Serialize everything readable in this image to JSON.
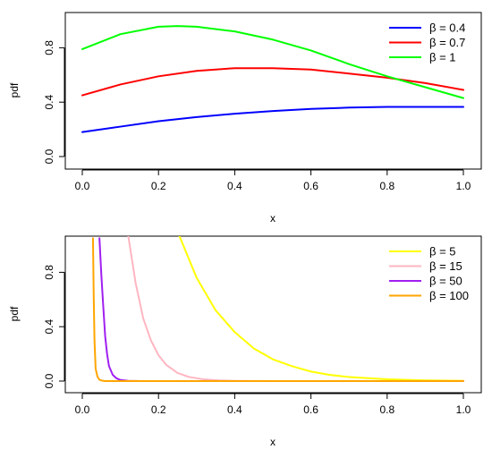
{
  "chart_data": [
    {
      "type": "line",
      "xlabel": "x",
      "ylabel": "pdf",
      "xlim": [
        0,
        1
      ],
      "ylim": [
        0,
        1
      ],
      "xticks": [
        "0.0",
        "0.2",
        "0.4",
        "0.6",
        "0.8",
        "1.0"
      ],
      "yticks": [
        "0.0",
        "0.4",
        "0.8"
      ],
      "legend_position": "top-right",
      "grid": false,
      "series": [
        {
          "name": "β = 0.4",
          "color": "#0000ff",
          "x": [
            0,
            0.1,
            0.2,
            0.3,
            0.4,
            0.5,
            0.6,
            0.7,
            0.8,
            0.9,
            1.0
          ],
          "y": [
            0.18,
            0.22,
            0.26,
            0.29,
            0.315,
            0.335,
            0.35,
            0.36,
            0.365,
            0.365,
            0.365
          ]
        },
        {
          "name": "β = 0.7",
          "color": "#ff0000",
          "x": [
            0,
            0.1,
            0.2,
            0.3,
            0.4,
            0.5,
            0.6,
            0.7,
            0.8,
            0.9,
            1.0
          ],
          "y": [
            0.45,
            0.53,
            0.59,
            0.63,
            0.65,
            0.65,
            0.64,
            0.61,
            0.58,
            0.54,
            0.49
          ]
        },
        {
          "name": "β = 1",
          "color": "#00ff00",
          "x": [
            0,
            0.1,
            0.2,
            0.25,
            0.3,
            0.4,
            0.5,
            0.6,
            0.7,
            0.8,
            0.9,
            1.0
          ],
          "y": [
            0.79,
            0.9,
            0.955,
            0.96,
            0.955,
            0.92,
            0.86,
            0.78,
            0.68,
            0.59,
            0.51,
            0.43
          ]
        }
      ]
    },
    {
      "type": "line",
      "xlabel": "x",
      "ylabel": "pdf",
      "xlim": [
        0,
        1
      ],
      "ylim": [
        0,
        1
      ],
      "xticks": [
        "0.0",
        "0.2",
        "0.4",
        "0.6",
        "0.8",
        "1.0"
      ],
      "yticks": [
        "0.0",
        "0.4",
        "0.8"
      ],
      "legend_position": "top-right",
      "grid": false,
      "series": [
        {
          "name": "β = 5",
          "color": "#ffff00",
          "x": [
            0.25,
            0.3,
            0.35,
            0.4,
            0.45,
            0.5,
            0.55,
            0.6,
            0.65,
            0.7,
            0.8,
            0.9,
            1.0
          ],
          "y": [
            1.1,
            0.76,
            0.52,
            0.36,
            0.24,
            0.16,
            0.11,
            0.07,
            0.045,
            0.03,
            0.013,
            0.005,
            0.002
          ]
        },
        {
          "name": "β = 15",
          "color": "#ffb6c1",
          "x": [
            0.12,
            0.14,
            0.16,
            0.18,
            0.2,
            0.22,
            0.25,
            0.28,
            0.32,
            0.36,
            0.4,
            0.5,
            1.0
          ],
          "y": [
            1.08,
            0.72,
            0.46,
            0.3,
            0.19,
            0.12,
            0.06,
            0.03,
            0.012,
            0.005,
            0.002,
            0.0,
            0.0
          ]
        },
        {
          "name": "β = 50",
          "color": "#a020f0",
          "x": [
            0.045,
            0.05,
            0.055,
            0.06,
            0.065,
            0.07,
            0.08,
            0.09,
            0.1,
            0.12,
            0.15,
            0.2,
            1.0
          ],
          "y": [
            1.05,
            0.78,
            0.55,
            0.33,
            0.2,
            0.11,
            0.045,
            0.02,
            0.008,
            0.002,
            0.0,
            0.0,
            0.0
          ]
        },
        {
          "name": "β = 100",
          "color": "#ffa500",
          "x": [
            0.028,
            0.03,
            0.032,
            0.035,
            0.04,
            0.045,
            0.05,
            0.06,
            0.08,
            0.1,
            1.0
          ],
          "y": [
            1.05,
            0.62,
            0.3,
            0.09,
            0.03,
            0.01,
            0.004,
            0.0,
            0.0,
            0.0,
            0.0
          ]
        }
      ]
    }
  ]
}
